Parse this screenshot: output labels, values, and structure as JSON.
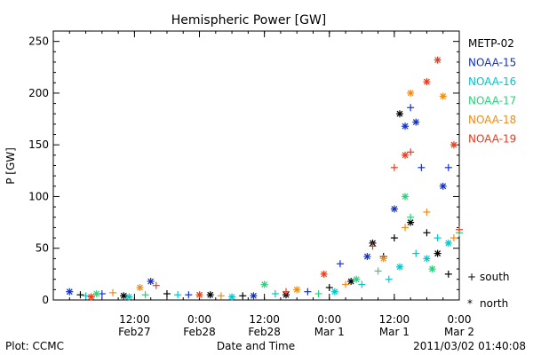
{
  "chart_data": {
    "type": "scatter",
    "title": "Hemispheric Power [GW]",
    "xlabel": "Date and Time",
    "ylabel": "P [GW]",
    "x_range": [
      "2011-02-26 21:00",
      "2011-03-02 00:00"
    ],
    "ylim": [
      0,
      260
    ],
    "y_ticks": [
      0,
      50,
      100,
      150,
      200,
      250
    ],
    "x_ticks": [
      {
        "t": "2011-02-27 12:00",
        "label_top": "12:00",
        "label_bottom": "Feb27"
      },
      {
        "t": "2011-02-28 00:00",
        "label_top": "0:00",
        "label_bottom": "Feb28"
      },
      {
        "t": "2011-02-28 12:00",
        "label_top": "12:00",
        "label_bottom": "Feb28"
      },
      {
        "t": "2011-03-01 00:00",
        "label_top": "0:00",
        "label_bottom": "Mar 1"
      },
      {
        "t": "2011-03-01 12:00",
        "label_top": "12:00",
        "label_bottom": "Mar 1"
      },
      {
        "t": "2011-03-02 00:00",
        "label_top": "0:00",
        "label_bottom": "Mar 2"
      }
    ],
    "grid": false,
    "legend_position": "right",
    "marker_legend": {
      "south": {
        "symbol": "+",
        "label": "south"
      },
      "north": {
        "symbol": "*",
        "label": "north"
      }
    },
    "series": [
      {
        "name": "METP-02",
        "color": "#000000",
        "points": [
          {
            "t": "2011-02-27 02:00",
            "v": 5,
            "hemi": "south"
          },
          {
            "t": "2011-02-27 10:00",
            "v": 4,
            "hemi": "north"
          },
          {
            "t": "2011-02-27 18:00",
            "v": 6,
            "hemi": "south"
          },
          {
            "t": "2011-02-28 02:00",
            "v": 5,
            "hemi": "north"
          },
          {
            "t": "2011-02-28 08:00",
            "v": 4,
            "hemi": "south"
          },
          {
            "t": "2011-02-28 16:00",
            "v": 5,
            "hemi": "north"
          },
          {
            "t": "2011-03-01 00:00",
            "v": 12,
            "hemi": "south"
          },
          {
            "t": "2011-03-01 04:00",
            "v": 18,
            "hemi": "north"
          },
          {
            "t": "2011-03-01 08:00",
            "v": 55,
            "hemi": "north"
          },
          {
            "t": "2011-03-01 10:00",
            "v": 42,
            "hemi": "south"
          },
          {
            "t": "2011-03-01 12:00",
            "v": 60,
            "hemi": "south"
          },
          {
            "t": "2011-03-01 13:00",
            "v": 180,
            "hemi": "north"
          },
          {
            "t": "2011-03-01 15:00",
            "v": 75,
            "hemi": "north"
          },
          {
            "t": "2011-03-01 18:00",
            "v": 65,
            "hemi": "south"
          },
          {
            "t": "2011-03-01 20:00",
            "v": 45,
            "hemi": "north"
          },
          {
            "t": "2011-03-01 22:00",
            "v": 25,
            "hemi": "south"
          }
        ]
      },
      {
        "name": "NOAA-15",
        "color": "#1430c8",
        "points": [
          {
            "t": "2011-02-27 00:00",
            "v": 8,
            "hemi": "north"
          },
          {
            "t": "2011-02-27 06:00",
            "v": 6,
            "hemi": "south"
          },
          {
            "t": "2011-02-27 15:00",
            "v": 18,
            "hemi": "north"
          },
          {
            "t": "2011-02-27 22:00",
            "v": 5,
            "hemi": "south"
          },
          {
            "t": "2011-02-28 10:00",
            "v": 4,
            "hemi": "north"
          },
          {
            "t": "2011-02-28 20:00",
            "v": 8,
            "hemi": "south"
          },
          {
            "t": "2011-03-01 02:00",
            "v": 35,
            "hemi": "south"
          },
          {
            "t": "2011-03-01 07:00",
            "v": 42,
            "hemi": "north"
          },
          {
            "t": "2011-03-01 12:00",
            "v": 88,
            "hemi": "north"
          },
          {
            "t": "2011-03-01 14:00",
            "v": 168,
            "hemi": "north"
          },
          {
            "t": "2011-03-01 15:00",
            "v": 186,
            "hemi": "south"
          },
          {
            "t": "2011-03-01 16:00",
            "v": 172,
            "hemi": "north"
          },
          {
            "t": "2011-03-01 17:00",
            "v": 128,
            "hemi": "south"
          },
          {
            "t": "2011-03-01 21:00",
            "v": 110,
            "hemi": "north"
          },
          {
            "t": "2011-03-01 22:00",
            "v": 128,
            "hemi": "south"
          }
        ]
      },
      {
        "name": "NOAA-16",
        "color": "#00c8c8",
        "points": [
          {
            "t": "2011-02-27 03:00",
            "v": 4,
            "hemi": "south"
          },
          {
            "t": "2011-02-27 11:00",
            "v": 3,
            "hemi": "north"
          },
          {
            "t": "2011-02-27 20:00",
            "v": 5,
            "hemi": "south"
          },
          {
            "t": "2011-02-28 06:00",
            "v": 3,
            "hemi": "north"
          },
          {
            "t": "2011-02-28 14:00",
            "v": 6,
            "hemi": "south"
          },
          {
            "t": "2011-03-01 01:00",
            "v": 8,
            "hemi": "north"
          },
          {
            "t": "2011-03-01 06:00",
            "v": 15,
            "hemi": "south"
          },
          {
            "t": "2011-03-01 11:00",
            "v": 20,
            "hemi": "south"
          },
          {
            "t": "2011-03-01 13:00",
            "v": 32,
            "hemi": "north"
          },
          {
            "t": "2011-03-01 16:00",
            "v": 45,
            "hemi": "south"
          },
          {
            "t": "2011-03-01 18:00",
            "v": 40,
            "hemi": "north"
          },
          {
            "t": "2011-03-01 20:00",
            "v": 60,
            "hemi": "south"
          },
          {
            "t": "2011-03-01 22:00",
            "v": 55,
            "hemi": "north"
          }
        ]
      },
      {
        "name": "NOAA-17",
        "color": "#28d27a",
        "points": [
          {
            "t": "2011-02-27 05:00",
            "v": 6,
            "hemi": "north"
          },
          {
            "t": "2011-02-27 14:00",
            "v": 5,
            "hemi": "south"
          },
          {
            "t": "2011-02-28 12:00",
            "v": 15,
            "hemi": "north"
          },
          {
            "t": "2011-02-28 22:00",
            "v": 6,
            "hemi": "south"
          },
          {
            "t": "2011-03-01 05:00",
            "v": 20,
            "hemi": "north"
          },
          {
            "t": "2011-03-01 09:00",
            "v": 28,
            "hemi": "south"
          },
          {
            "t": "2011-03-01 14:00",
            "v": 100,
            "hemi": "north"
          },
          {
            "t": "2011-03-01 15:00",
            "v": 80,
            "hemi": "south"
          },
          {
            "t": "2011-03-01 19:00",
            "v": 30,
            "hemi": "north"
          },
          {
            "t": "2011-03-02 00:00",
            "v": 65,
            "hemi": "south"
          }
        ]
      },
      {
        "name": "NOAA-18",
        "color": "#f08c14",
        "points": [
          {
            "t": "2011-02-27 08:00",
            "v": 7,
            "hemi": "south"
          },
          {
            "t": "2011-02-27 13:00",
            "v": 12,
            "hemi": "north"
          },
          {
            "t": "2011-02-28 04:00",
            "v": 4,
            "hemi": "south"
          },
          {
            "t": "2011-02-28 18:00",
            "v": 10,
            "hemi": "north"
          },
          {
            "t": "2011-03-01 03:00",
            "v": 15,
            "hemi": "south"
          },
          {
            "t": "2011-03-01 10:00",
            "v": 40,
            "hemi": "north"
          },
          {
            "t": "2011-03-01 14:00",
            "v": 70,
            "hemi": "south"
          },
          {
            "t": "2011-03-01 15:00",
            "v": 200,
            "hemi": "north"
          },
          {
            "t": "2011-03-01 18:00",
            "v": 85,
            "hemi": "south"
          },
          {
            "t": "2011-03-01 21:00",
            "v": 197,
            "hemi": "north"
          },
          {
            "t": "2011-03-01 23:00",
            "v": 60,
            "hemi": "south"
          }
        ]
      },
      {
        "name": "NOAA-19",
        "color": "#e63c1e",
        "points": [
          {
            "t": "2011-02-27 04:00",
            "v": 3,
            "hemi": "north"
          },
          {
            "t": "2011-02-27 16:00",
            "v": 14,
            "hemi": "south"
          },
          {
            "t": "2011-02-28 00:00",
            "v": 5,
            "hemi": "north"
          },
          {
            "t": "2011-02-28 16:00",
            "v": 8,
            "hemi": "south"
          },
          {
            "t": "2011-02-28 23:00",
            "v": 25,
            "hemi": "north"
          },
          {
            "t": "2011-03-01 08:00",
            "v": 52,
            "hemi": "south"
          },
          {
            "t": "2011-03-01 12:00",
            "v": 128,
            "hemi": "south"
          },
          {
            "t": "2011-03-01 14:00",
            "v": 140,
            "hemi": "north"
          },
          {
            "t": "2011-03-01 15:00",
            "v": 143,
            "hemi": "south"
          },
          {
            "t": "2011-03-01 18:00",
            "v": 211,
            "hemi": "north"
          },
          {
            "t": "2011-03-01 20:00",
            "v": 232,
            "hemi": "north"
          },
          {
            "t": "2011-03-01 23:00",
            "v": 150,
            "hemi": "north"
          },
          {
            "t": "2011-03-02 00:00",
            "v": 68,
            "hemi": "south"
          }
        ]
      }
    ]
  },
  "footer": {
    "left": "Plot: CCMC",
    "right": "2011/03/02 01:40:08"
  }
}
